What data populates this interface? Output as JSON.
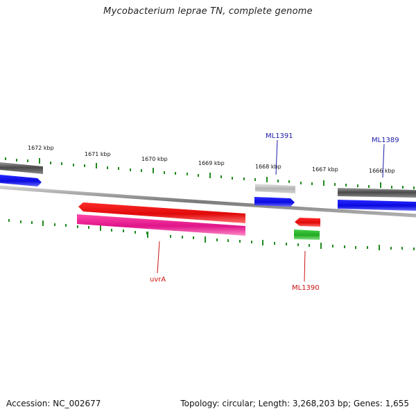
{
  "title": "Mycobacterium leprae TN, complete genome",
  "footer": {
    "accession": "Accession: NC_002677",
    "summary": "Topology: circular; Length: 3,268,203 bp; Genes: 1,655"
  },
  "map": {
    "scale_labels": [
      "1672 kbp",
      "1671 kbp",
      "1670 kbp",
      "1669 kbp",
      "1668 kbp",
      "1667 kbp",
      "1666 kbp"
    ],
    "gene_labels": [
      "ML1391",
      "ML1389",
      "uvrA",
      "ML1390"
    ],
    "colors": {
      "backbone": "#888888",
      "tick": "#1f8a1f",
      "forward_label": "#1a1aa8",
      "reverse_label": "#cc1111",
      "blue_feature": "#1414e6",
      "red_feature": "#ee1111",
      "pink_feature": "#ee2299",
      "green_feature": "#33bb33",
      "dark_grey_feature": "#555555",
      "light_grey_feature": "#b8b8b8"
    }
  }
}
